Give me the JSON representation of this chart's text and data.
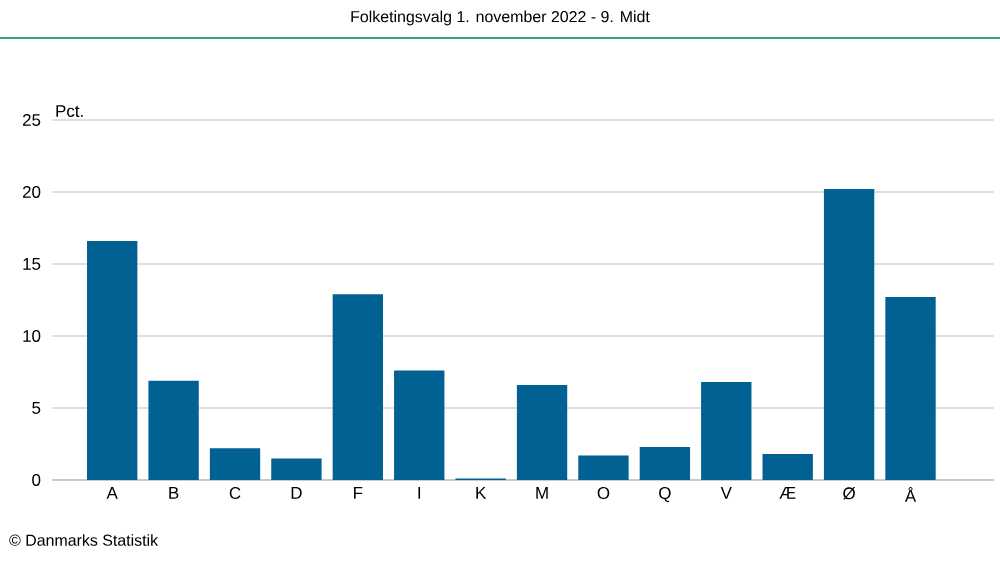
{
  "chart_data": {
    "type": "bar",
    "title": "Folketingsvalg 1. november 2022 - 9. Midt",
    "ylabel": "Pct.",
    "categories": [
      "A",
      "B",
      "C",
      "D",
      "F",
      "I",
      "K",
      "M",
      "O",
      "Q",
      "V",
      "Æ",
      "Ø",
      "Å"
    ],
    "values": [
      16.6,
      6.9,
      2.2,
      1.5,
      12.9,
      7.6,
      0.1,
      6.6,
      1.7,
      2.3,
      6.8,
      1.8,
      20.2,
      12.7
    ],
    "color": "#006192",
    "ylim": [
      0,
      25
    ],
    "yticks": [
      0,
      5,
      10,
      15,
      20,
      25
    ],
    "grid": "y",
    "annotations": [
      "© Danmarks Statistik"
    ]
  }
}
